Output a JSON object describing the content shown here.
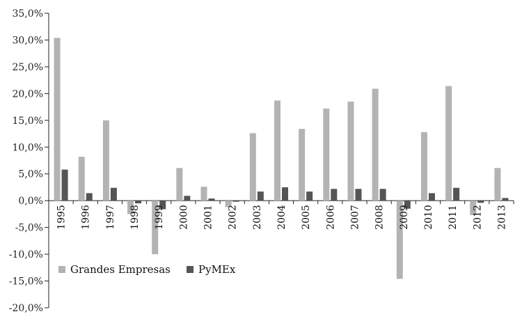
{
  "chart_data": {
    "type": "bar",
    "categories": [
      "1995",
      "1996",
      "1997",
      "1998",
      "1999",
      "2000",
      "2001",
      "2002",
      "2003",
      "2004",
      "2005",
      "2006",
      "2007",
      "2008",
      "2009",
      "2010",
      "2011",
      "2012",
      "2013"
    ],
    "series": [
      {
        "name": "Grandes Empresas",
        "color": "#b3b3b3",
        "values": [
          30.4,
          8.2,
          15.0,
          -2.5,
          -10.0,
          6.1,
          2.6,
          -1.2,
          12.6,
          18.7,
          13.4,
          17.2,
          18.5,
          20.9,
          -14.6,
          12.8,
          21.4,
          -2.7,
          6.1
        ]
      },
      {
        "name": "PyMEx",
        "color": "#555555",
        "values": [
          5.8,
          1.4,
          2.4,
          -0.5,
          -1.6,
          0.9,
          0.4,
          -0.2,
          1.7,
          2.5,
          1.7,
          2.2,
          2.2,
          2.2,
          -1.5,
          1.4,
          2.4,
          -0.4,
          0.5
        ]
      }
    ],
    "ylim": [
      -20,
      35
    ],
    "yticks": [
      "-20,0%",
      "-15,0%",
      "-10,0%",
      "-5,0%",
      "0,0%",
      "5,0%",
      "10,0%",
      "15,0%",
      "20,0%",
      "25,0%",
      "30,0%",
      "35,0%"
    ],
    "legend_position": "bottom-left",
    "grid": false,
    "axis_color": "#222222"
  }
}
